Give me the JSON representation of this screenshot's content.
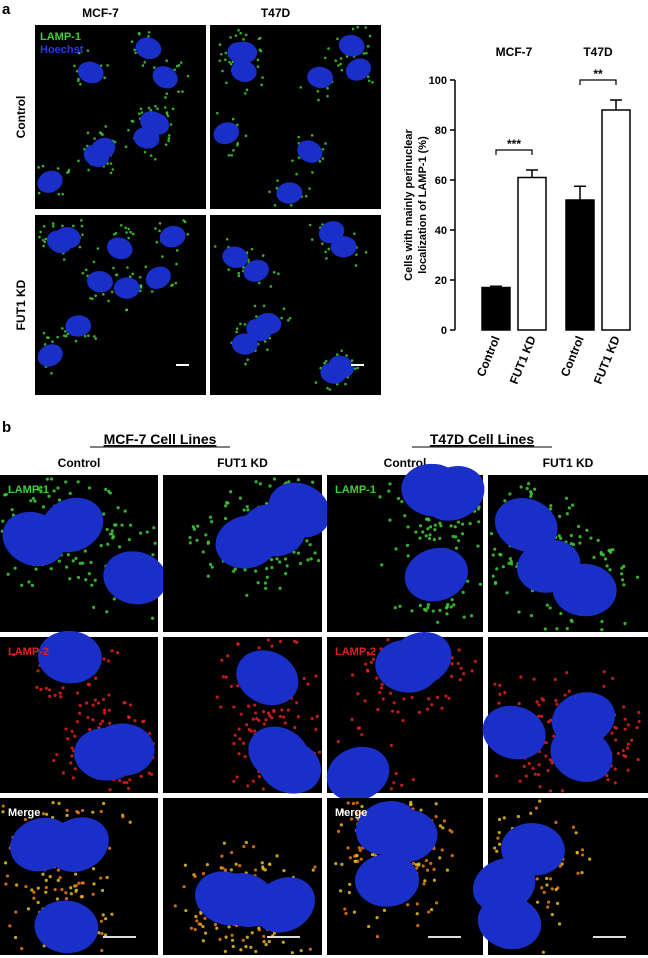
{
  "panel_a": {
    "label": "a",
    "columns": [
      "MCF-7",
      "T47D"
    ],
    "rows": [
      "Control",
      "FUT1 KD"
    ],
    "stain_labels": [
      "LAMP-1",
      "Hoechst"
    ]
  },
  "chart_data": {
    "type": "bar",
    "categories": [
      "MCF-7",
      "T47D"
    ],
    "ylabel_lines": [
      "Cells with mainly perinuclear",
      "localization of LAMP-1 (%)"
    ],
    "series": [
      {
        "name": "Control",
        "color": "#000000",
        "values": [
          17,
          52
        ],
        "errors": [
          0.5,
          5.5
        ]
      },
      {
        "name": "FUT1 KD",
        "color": "#ffffff",
        "values": [
          61,
          88
        ],
        "errors": [
          3,
          4
        ]
      }
    ],
    "annotations": [
      "***",
      "**"
    ],
    "ylim": [
      0,
      100
    ],
    "yticks": [
      0,
      20,
      40,
      60,
      80,
      100
    ],
    "grid": false
  },
  "panel_b": {
    "label": "b",
    "groups": [
      "MCF-7 Cell Lines",
      "T47D Cell Lines"
    ],
    "columns": [
      "Control",
      "FUT1 KD",
      "Control",
      "FUT1 KD"
    ],
    "rows": [
      "LAMP-1",
      "LAMP-2",
      "Merge"
    ]
  }
}
